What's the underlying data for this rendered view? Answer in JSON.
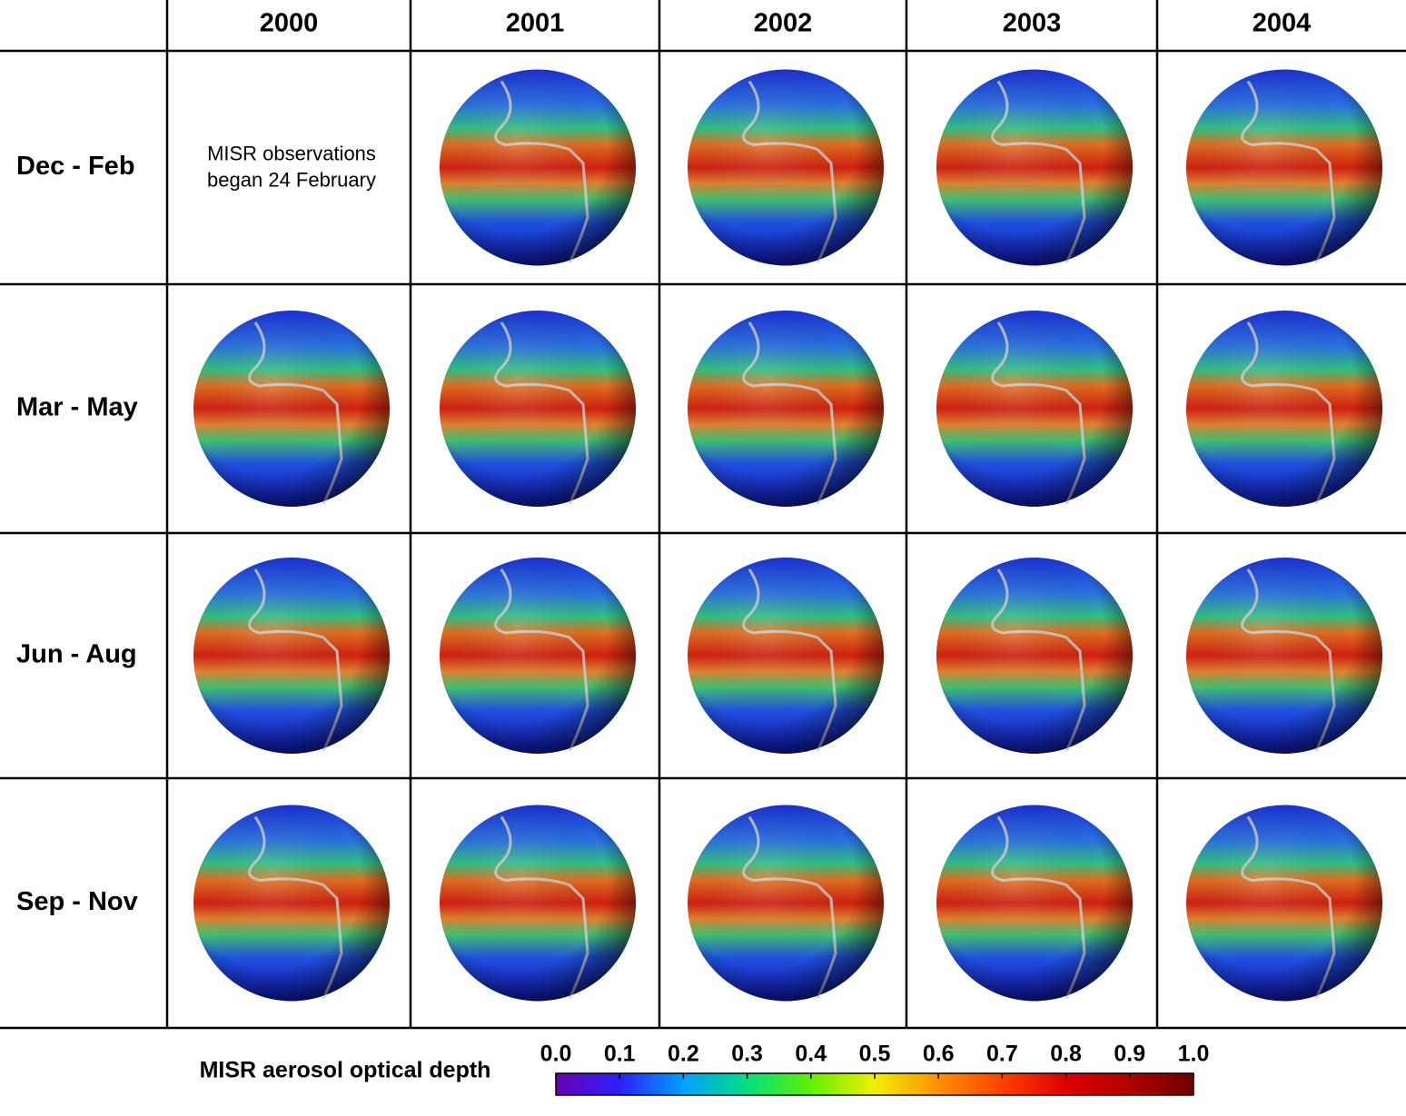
{
  "table": {
    "columns": [
      "2000",
      "2001",
      "2002",
      "2003",
      "2004"
    ],
    "rows": [
      "Dec - Feb",
      "Mar - May",
      "Jun - Aug",
      "Sep - Nov"
    ],
    "note": [
      "MISR observations",
      "began 24 February"
    ]
  },
  "colorbar": {
    "title": "MISR aerosol optical depth",
    "range": [
      0,
      1
    ],
    "ticks": [
      {
        "value": 0,
        "label": "0.0"
      },
      {
        "value": 0.1,
        "label": "0.1"
      },
      {
        "value": 0.2,
        "label": "0.2"
      },
      {
        "value": 0.3,
        "label": "0.3"
      },
      {
        "value": 0.4,
        "label": "0.4"
      },
      {
        "value": 0.5,
        "label": "0.5"
      },
      {
        "value": 0.6,
        "label": "0.6"
      },
      {
        "value": 0.7,
        "label": "0.7"
      },
      {
        "value": 0.8,
        "label": "0.8"
      },
      {
        "value": 0.9,
        "label": "0.9"
      },
      {
        "value": 1,
        "label": "1.0"
      }
    ],
    "colors": [
      "#6a00b0",
      "#2a20ff",
      "#00a0ff",
      "#00e080",
      "#60f000",
      "#f0f000",
      "#ff9000",
      "#ff4000",
      "#e00000",
      "#b00000",
      "#700000"
    ]
  }
}
